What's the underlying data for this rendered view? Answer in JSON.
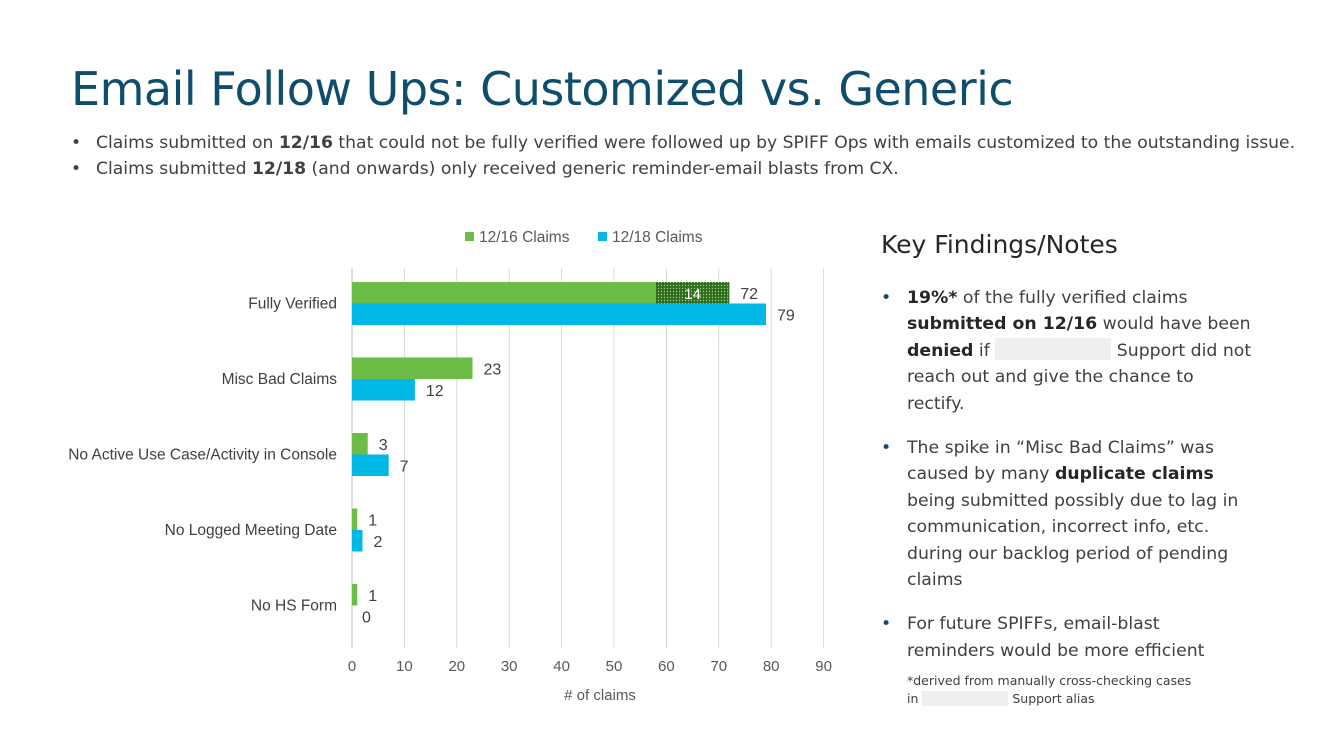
{
  "slide": {
    "title": "Email Follow Ups: Customized vs. Generic",
    "bullets": [
      {
        "pre": "Claims submitted on ",
        "bold": "12/16",
        "post": " that could not be fully verified were followed up by SPIFF Ops with emails customized to the outstanding issue."
      },
      {
        "pre": "Claims submitted ",
        "bold": "12/18",
        "post": " (and onwards) only received generic reminder-email blasts from CX."
      }
    ]
  },
  "notes": {
    "title": "Key Findings/Notes",
    "items": [
      {
        "lines": [
          [
            "19%*",
            " of the fully verified claims"
          ],
          [
            "submitted on 12/16",
            " would have been"
          ],
          [
            "denied",
            " if ",
            "",
            " Support did not"
          ],
          [
            "reach out and give the chance to"
          ],
          [
            "rectify."
          ]
        ]
      },
      {
        "lines": [
          [
            "The spike in “Misc Bad Claims” was"
          ],
          [
            "caused by many ",
            "duplicate claims"
          ],
          [
            "being submitted possibly due to lag in"
          ],
          [
            "communication, incorrect info, etc."
          ],
          [
            "during our backlog period of pending"
          ],
          [
            "claims"
          ]
        ]
      },
      {
        "lines": [
          [
            "For future SPIFFs, email-blast"
          ],
          [
            "reminders would be more efficient"
          ]
        ]
      }
    ],
    "footnote": {
      "line1": "*derived from manually cross-checking cases",
      "line2_pre": "in",
      "line2_post": "Support alias"
    }
  },
  "chart_data": {
    "type": "bar",
    "orientation": "horizontal",
    "categories": [
      "Fully Verified",
      "Misc Bad Claims",
      "No Active Use Case/Activity in Console",
      "No Logged Meeting Date",
      "No HS Form"
    ],
    "series": [
      {
        "name": "12/16 Claims",
        "color": "#6cbd45",
        "values": [
          72,
          23,
          3,
          1,
          1
        ]
      },
      {
        "name": "12/18 Claims",
        "color": "#00b8e6",
        "values": [
          79,
          12,
          7,
          2,
          0
        ]
      }
    ],
    "annotation": {
      "category": "Fully Verified",
      "series": "12/16 Claims",
      "value": 14,
      "label": "14",
      "range": [
        58,
        72
      ],
      "fill": "dotted"
    },
    "xlabel": "# of claims",
    "xlim": [
      0,
      90
    ],
    "xticks": [
      0,
      10,
      20,
      30,
      40,
      50,
      60,
      70,
      80,
      90
    ],
    "grid": true,
    "legend": "top"
  }
}
